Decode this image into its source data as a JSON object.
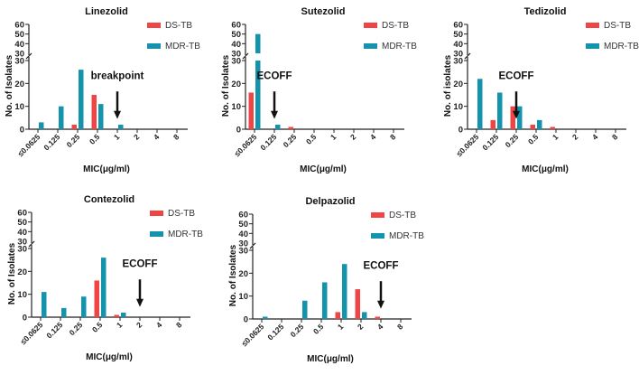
{
  "chart_data": [
    {
      "type": "bar",
      "title": "Linezolid",
      "xlabel": "MIC(μg/ml)",
      "ylabel": "No. of Isolates",
      "categories": [
        "≤0.0625",
        "0.125",
        "0.25",
        "0.5",
        "1",
        "2",
        "4",
        "8"
      ],
      "yticks_lower": [
        0,
        10,
        20,
        30
      ],
      "yticks_upper": [
        30,
        40,
        50,
        60
      ],
      "ylim": [
        0,
        60
      ],
      "axis_break": 30,
      "series": [
        {
          "name": "DS-TB",
          "color": "#f04545",
          "values": [
            0,
            0,
            2,
            15,
            0,
            0,
            0,
            0
          ]
        },
        {
          "name": "MDR-TB",
          "color": "#1493ad",
          "values": [
            3,
            10,
            26,
            11,
            2,
            0,
            0,
            0
          ]
        }
      ],
      "annotation": {
        "text": "breakpoint",
        "category": "1"
      }
    },
    {
      "type": "bar",
      "title": "Sutezolid",
      "xlabel": "MIC(μg/ml)",
      "ylabel": "No. of Isolates",
      "categories": [
        "≤0.0625",
        "0.125",
        "0.25",
        "0.5",
        "1",
        "2",
        "4",
        "8"
      ],
      "yticks_lower": [
        0,
        10,
        20,
        30
      ],
      "yticks_upper": [
        30,
        40,
        50,
        60
      ],
      "ylim": [
        0,
        60
      ],
      "axis_break": 30,
      "series": [
        {
          "name": "DS-TB",
          "color": "#f04545",
          "values": [
            16,
            0,
            1,
            0,
            0,
            0,
            0,
            0
          ]
        },
        {
          "name": "MDR-TB",
          "color": "#1493ad",
          "values": [
            50,
            2,
            0,
            0,
            0,
            0,
            0,
            0
          ]
        }
      ],
      "annotation": {
        "text": "ECOFF",
        "category": "0.125"
      }
    },
    {
      "type": "bar",
      "title": "Tedizolid",
      "xlabel": "MIC(μg/ml)",
      "ylabel": "No. of isolates",
      "categories": [
        "≤0.0625",
        "0.125",
        "0.25",
        "0.5",
        "1",
        "2",
        "4",
        "8"
      ],
      "yticks_lower": [
        0,
        10,
        20,
        30
      ],
      "yticks_upper": [
        30,
        40,
        50,
        60
      ],
      "ylim": [
        0,
        60
      ],
      "axis_break": 30,
      "series": [
        {
          "name": "DS-TB",
          "color": "#f04545",
          "values": [
            0,
            4,
            10,
            2,
            1,
            0,
            0,
            0
          ]
        },
        {
          "name": "MDR-TB",
          "color": "#1493ad",
          "values": [
            22,
            16,
            10,
            4,
            0,
            0,
            0,
            0
          ]
        }
      ],
      "annotation": {
        "text": "ECOFF",
        "category": "0.25"
      }
    },
    {
      "type": "bar",
      "title": "Contezolid",
      "xlabel": "MIC(μg/ml)",
      "ylabel": "No. of Isolates",
      "categories": [
        "≤0.0625",
        "0.125",
        "0.25",
        "0.5",
        "1",
        "2",
        "4",
        "8"
      ],
      "yticks_lower": [
        0,
        10,
        20,
        30
      ],
      "yticks_upper": [
        30,
        40,
        50,
        60
      ],
      "ylim": [
        0,
        60
      ],
      "axis_break": 30,
      "series": [
        {
          "name": "DS-TB",
          "color": "#f04545",
          "values": [
            0,
            0,
            0,
            16,
            1,
            0,
            0,
            0
          ]
        },
        {
          "name": "MDR-TB",
          "color": "#1493ad",
          "values": [
            11,
            4,
            9,
            26,
            2,
            0,
            0,
            0
          ]
        }
      ],
      "annotation": {
        "text": "ECOFF",
        "category": "2"
      }
    },
    {
      "type": "bar",
      "title": "Delpazolid",
      "xlabel": "MIC(μg/ml)",
      "ylabel": "No. of Isolates",
      "categories": [
        "≤0.0625",
        "0.125",
        "0.25",
        "0.5",
        "1",
        "2",
        "4",
        "8"
      ],
      "yticks_lower": [
        0,
        10,
        20,
        30
      ],
      "yticks_upper": [
        30,
        40,
        50,
        60
      ],
      "ylim": [
        0,
        60
      ],
      "axis_break": 30,
      "series": [
        {
          "name": "DS-TB",
          "color": "#f04545",
          "values": [
            0,
            0,
            0,
            0,
            3,
            13,
            1,
            0
          ]
        },
        {
          "name": "MDR-TB",
          "color": "#1493ad",
          "values": [
            1,
            0,
            8,
            16,
            24,
            3,
            0,
            0
          ]
        }
      ],
      "annotation": {
        "text": "ECOFF",
        "category": "4"
      }
    }
  ]
}
